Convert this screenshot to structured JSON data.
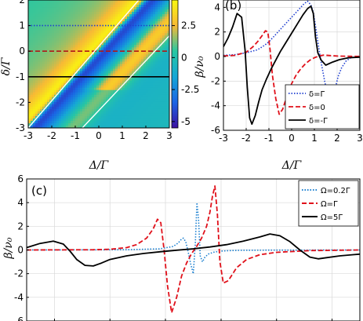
{
  "chart_data": [
    {
      "type": "heatmap",
      "xlabel": "Δ/Γ",
      "ylabel": "δ/Γ",
      "x_ticks": [
        "-3",
        "-2",
        "-1",
        "0",
        "1",
        "2",
        "3"
      ],
      "y_ticks": [
        "2",
        "1",
        "0",
        "-1",
        "-2",
        "-3"
      ],
      "xlim": [
        -3,
        3
      ],
      "ylim": [
        -3,
        2
      ],
      "colorbar": {
        "ticks": [
          "2.5",
          "0",
          "-2.5",
          "-5"
        ],
        "range": [
          -5.5,
          4.5
        ]
      },
      "reference_lines": [
        {
          "y": 1,
          "style": "dotted",
          "color": "#1f3fd0"
        },
        {
          "y": 0,
          "style": "dashed",
          "color": "#b01818"
        },
        {
          "y": -1,
          "style": "solid",
          "color": "#000000"
        }
      ],
      "diagonal_lines": [
        {
          "x1": -3,
          "y1": -3,
          "x2": 1.7,
          "y2": 2
        },
        {
          "x1": -0.7,
          "y1": -3,
          "x2": 3,
          "y2": 0.6
        }
      ]
    },
    {
      "type": "line",
      "panel_label": "(b)",
      "xlabel": "Δ/Γ",
      "ylabel": "β/ν₀",
      "x_ticks": [
        "-3",
        "-2",
        "-1",
        "0",
        "1",
        "2",
        "3"
      ],
      "y_ticks": [
        "4",
        "2",
        "0",
        "-2",
        "-4",
        "-6"
      ],
      "xlim": [
        -3,
        3
      ],
      "ylim": [
        -6,
        4.6
      ],
      "legend": "bottom-right",
      "series": [
        {
          "name": "δ=Γ",
          "style": "dotted",
          "color": "#1f3fd0",
          "x": [
            -3,
            -2.5,
            -2,
            -1.5,
            -1.2,
            -1,
            -0.8,
            -0.6,
            -0.45,
            -0.3,
            -0.15,
            0,
            0.2,
            0.4,
            0.55,
            0.7,
            0.85,
            0.95,
            1.05,
            1.15,
            1.3,
            1.45,
            1.6,
            1.75,
            1.9,
            2.05,
            2.2,
            2.4,
            2.6,
            3
          ],
          "y": [
            0.1,
            0.15,
            0.3,
            0.55,
            0.9,
            1.2,
            1.6,
            2.0,
            2.3,
            2.6,
            2.9,
            3.2,
            3.6,
            4.0,
            4.3,
            4.5,
            4.2,
            3.6,
            2.5,
            1.2,
            -0.5,
            -2.0,
            -3.3,
            -3.7,
            -2.7,
            -1.6,
            -0.9,
            -0.35,
            -0.1,
            0.05
          ]
        },
        {
          "name": "δ=0",
          "style": "dashed",
          "color": "#e0101a",
          "x": [
            -3,
            -2.5,
            -2,
            -1.7,
            -1.5,
            -1.3,
            -1.15,
            -1.05,
            -0.95,
            -0.85,
            -0.7,
            -0.55,
            -0.4,
            -0.2,
            0,
            0.2,
            0.4,
            0.6,
            0.8,
            1,
            1.2,
            1.4,
            1.7,
            2,
            2.5,
            3
          ],
          "y": [
            0.05,
            0.1,
            0.35,
            0.8,
            1.2,
            1.7,
            2.1,
            2.0,
            0.6,
            -1.5,
            -3.4,
            -4.7,
            -4.3,
            -3.2,
            -2.2,
            -1.5,
            -1.0,
            -0.6,
            -0.3,
            -0.1,
            0.05,
            0.12,
            0.08,
            0.04,
            0.02,
            0.01
          ]
        },
        {
          "name": "δ=-Γ",
          "style": "solid",
          "color": "#000000",
          "x": [
            -3,
            -2.8,
            -2.6,
            -2.4,
            -2.2,
            -2.05,
            -1.95,
            -1.85,
            -1.75,
            -1.6,
            -1.45,
            -1.3,
            -1.1,
            -0.9,
            -0.7,
            -0.5,
            -0.3,
            -0.1,
            0.1,
            0.3,
            0.5,
            0.7,
            0.85,
            0.95,
            1.05,
            1.15,
            1.3,
            1.5,
            1.8,
            2.1,
            2.5,
            3
          ],
          "y": [
            0.8,
            1.5,
            2.4,
            3.5,
            3.2,
            0.5,
            -2.5,
            -5.0,
            -5.5,
            -4.8,
            -3.7,
            -2.7,
            -1.8,
            -1.0,
            -0.3,
            0.4,
            1.0,
            1.6,
            2.2,
            2.8,
            3.4,
            3.9,
            4.1,
            3.5,
            1.6,
            0.3,
            -0.3,
            -0.7,
            -0.45,
            -0.25,
            -0.1,
            -0.05
          ]
        }
      ]
    },
    {
      "type": "line",
      "panel_label": "(c)",
      "ylabel": "β/ν₀",
      "y_ticks": [
        "6",
        "4",
        "2",
        "0",
        "-2",
        "-4",
        "-6"
      ],
      "xlim": [
        -10,
        10
      ],
      "ylim": [
        -6,
        6
      ],
      "legend": "top-right",
      "series": [
        {
          "name": "Ω=0.2Γ",
          "style": "dotted",
          "color": "#1a7fd0",
          "x": [
            -10,
            -4,
            -2,
            -1.2,
            -0.9,
            -0.75,
            -0.6,
            -0.45,
            -0.3,
            -0.15,
            0,
            0.12,
            0.22,
            0.32,
            0.42,
            0.55,
            0.7,
            0.9,
            1.2,
            1.6,
            2.2,
            3,
            5,
            10
          ],
          "y": [
            0,
            0.02,
            0.1,
            0.3,
            0.6,
            0.85,
            1.0,
            0.7,
            -0.2,
            -1.2,
            -2.0,
            0.5,
            4.0,
            2.5,
            -0.5,
            -1.0,
            -0.6,
            -0.35,
            -0.2,
            -0.1,
            -0.05,
            -0.02,
            -0.01,
            0
          ]
        },
        {
          "name": "Ω=Γ",
          "style": "dashed",
          "color": "#e0101a",
          "x": [
            -10,
            -6,
            -5,
            -4,
            -3.4,
            -2.8,
            -2.4,
            -2.15,
            -1.95,
            -1.75,
            -1.55,
            -1.3,
            -1.0,
            -0.7,
            -0.4,
            -0.1,
            0.2,
            0.5,
            0.8,
            1.0,
            1.15,
            1.3,
            1.45,
            1.6,
            1.8,
            2.1,
            2.6,
            3.2,
            4,
            5,
            7,
            10
          ],
          "y": [
            0,
            0.02,
            0.06,
            0.2,
            0.45,
            1.0,
            1.8,
            2.6,
            2.3,
            0.0,
            -3.0,
            -5.3,
            -4.0,
            -2.2,
            -1.1,
            -0.3,
            0.3,
            1.0,
            2.0,
            3.2,
            4.5,
            5.4,
            3.0,
            -1.0,
            -2.8,
            -2.6,
            -1.5,
            -0.8,
            -0.4,
            -0.2,
            -0.05,
            0
          ]
        },
        {
          "name": "Ω=5Γ",
          "style": "solid",
          "color": "#000000",
          "x": [
            -10,
            -9.2,
            -8.4,
            -7.8,
            -7.4,
            -7.0,
            -6.5,
            -6.0,
            -5.5,
            -5.0,
            -4.0,
            -3.0,
            -2.0,
            -1.0,
            0,
            1.0,
            2.0,
            3.0,
            4.0,
            4.6,
            5.2,
            5.8,
            6.4,
            7.0,
            7.5,
            8.0,
            8.8,
            9.6,
            10
          ],
          "y": [
            0.2,
            0.55,
            0.75,
            0.5,
            -0.1,
            -0.8,
            -1.3,
            -1.35,
            -1.1,
            -0.8,
            -0.5,
            -0.3,
            -0.15,
            -0.02,
            0.1,
            0.25,
            0.45,
            0.75,
            1.1,
            1.35,
            1.2,
            0.7,
            0.0,
            -0.6,
            -0.75,
            -0.65,
            -0.5,
            -0.4,
            -0.35
          ]
        }
      ]
    }
  ]
}
